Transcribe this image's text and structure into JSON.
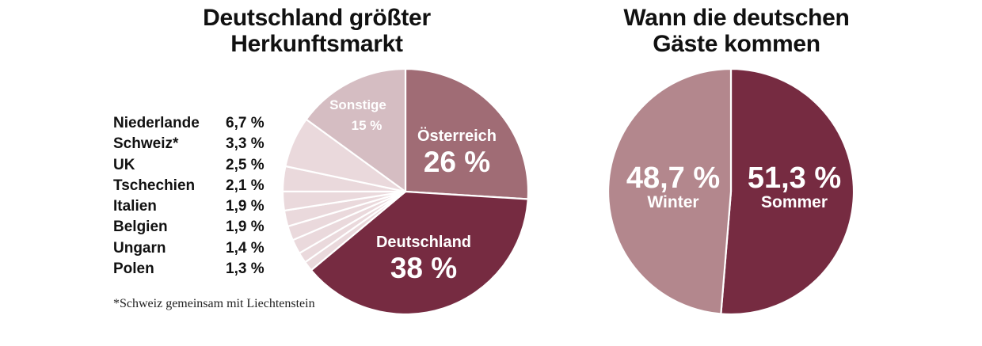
{
  "colors": {
    "deutschland": "#762b41",
    "oesterreich": "#a06c75",
    "sonstige": "#d5bdc2",
    "small_markets": "#ead9dc",
    "sommer": "#762b41",
    "winter": "#b3878d",
    "label_text": "#ffffff"
  },
  "chart_data": [
    {
      "type": "pie",
      "title": "Deutschland größter Herkunftsmarkt",
      "title_lines": [
        "Deutschland größter",
        "Herkunftsmarkt"
      ],
      "slices": [
        {
          "name": "Österreich",
          "label": "26 %",
          "value": 26
        },
        {
          "name": "Deutschland",
          "label": "38 %",
          "value": 38
        },
        {
          "name": "Polen",
          "label": "1,3 %",
          "value": 1.3
        },
        {
          "name": "Ungarn",
          "label": "1,4 %",
          "value": 1.4
        },
        {
          "name": "Belgien",
          "label": "1,9 %",
          "value": 1.9
        },
        {
          "name": "Italien",
          "label": "1,9 %",
          "value": 1.9
        },
        {
          "name": "Tschechien",
          "label": "2,1 %",
          "value": 2.1
        },
        {
          "name": "UK",
          "label": "2,5 %",
          "value": 2.5
        },
        {
          "name": "Schweiz*",
          "label": "3,3 %",
          "value": 3.3
        },
        {
          "name": "Niederlande",
          "label": "6,7 %",
          "value": 6.7
        },
        {
          "name": "Sonstige",
          "label": "15 %",
          "value": 15
        }
      ],
      "legend": [
        {
          "name": "Niederlande",
          "value": "6,7 %"
        },
        {
          "name": "Schweiz*",
          "value": "3,3 %"
        },
        {
          "name": "UK",
          "value": "2,5 %"
        },
        {
          "name": "Tschechien",
          "value": "2,1 %"
        },
        {
          "name": "Italien",
          "value": "1,9 %"
        },
        {
          "name": "Belgien",
          "value": "1,9 %"
        },
        {
          "name": "Ungarn",
          "value": "1,4 %"
        },
        {
          "name": "Polen",
          "value": "1,3 %"
        }
      ],
      "footnote": "*Schweiz gemeinsam mit Liechtenstein"
    },
    {
      "type": "pie",
      "title": "Wann die deutschen Gäste kommen",
      "title_lines": [
        "Wann die deutschen",
        "Gäste kommen"
      ],
      "slices": [
        {
          "name": "Sommer",
          "label": "51,3 %",
          "value": 51.3
        },
        {
          "name": "Winter",
          "label": "48,7 %",
          "value": 48.7
        }
      ]
    }
  ]
}
